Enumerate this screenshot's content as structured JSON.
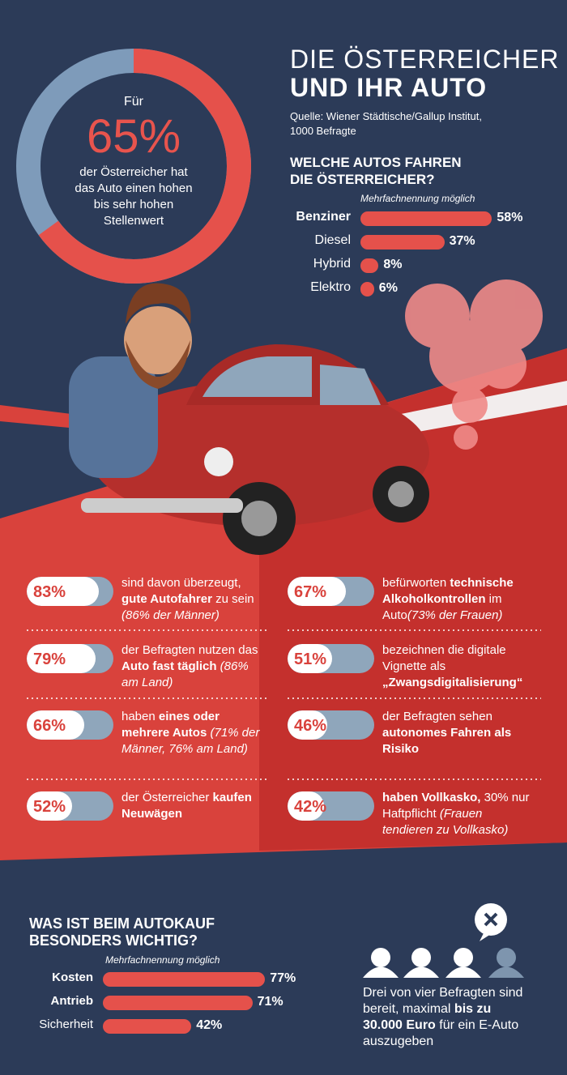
{
  "header": {
    "title_line1": "DIE ÖSTERREICHER",
    "title_line2": "UND IHR AUTO",
    "source": "Quelle: Wiener Städtische/Gallup Institut, 1000 Befragte"
  },
  "donut": {
    "prefix": "Für",
    "value": 65,
    "value_label": "65%",
    "text": "der Österreicher hat das Auto einen hohen bis sehr hohen Stellenwert"
  },
  "cars": {
    "title": "WELCHE AUTOS FAHREN DIE ÖSTERREICHER?",
    "note": "Mehrfachnennung möglich",
    "categories": [
      "Benziner",
      "Diesel",
      "Hybrid",
      "Elektro"
    ],
    "values": [
      58,
      37,
      8,
      6
    ],
    "value_labels": [
      "58%",
      "37%",
      "8%",
      "6%"
    ]
  },
  "stats": [
    {
      "value": 83,
      "value_label": "83%",
      "text": [
        {
          "t": "sind davon überzeugt, ",
          "style": "normal"
        },
        {
          "t": "gute Autofahrer",
          "style": "bold"
        },
        {
          "t": " zu sein ",
          "style": "normal"
        },
        {
          "t": "(86% der Männer)",
          "style": "italic"
        }
      ]
    },
    {
      "value": 79,
      "value_label": "79%",
      "text": [
        {
          "t": "der Befragten nutzen das ",
          "style": "normal"
        },
        {
          "t": "Auto fast täglich",
          "style": "bold"
        },
        {
          "t": " (86% am Land)",
          "style": "italic"
        }
      ]
    },
    {
      "value": 66,
      "value_label": "66%",
      "text": [
        {
          "t": "haben ",
          "style": "normal"
        },
        {
          "t": "eines oder mehrere Autos",
          "style": "bold"
        },
        {
          "t": " (71% der Männer, 76% am Land)",
          "style": "italic"
        }
      ]
    },
    {
      "value": 52,
      "value_label": "52%",
      "text": [
        {
          "t": "der Österreicher ",
          "style": "normal"
        },
        {
          "t": "kaufen Neuwägen",
          "style": "bold"
        }
      ]
    },
    {
      "value": 67,
      "value_label": "67%",
      "text": [
        {
          "t": "befürworten ",
          "style": "normal"
        },
        {
          "t": "technische Alkoholkontrollen",
          "style": "bold"
        },
        {
          "t": " im Auto",
          "style": "normal"
        },
        {
          "t": "(73% der Frauen)",
          "style": "italic"
        }
      ]
    },
    {
      "value": 51,
      "value_label": "51%",
      "text": [
        {
          "t": "bezeichnen die digitale Vignette als ",
          "style": "normal"
        },
        {
          "t": "„Zwangsdigitalisierung“",
          "style": "bold"
        }
      ]
    },
    {
      "value": 46,
      "value_label": "46%",
      "text": [
        {
          "t": "der Befragten sehen ",
          "style": "normal"
        },
        {
          "t": "autonomes Fahren als Risiko",
          "style": "bold"
        }
      ]
    },
    {
      "value": 42,
      "value_label": "42%",
      "text": [
        {
          "t": "haben Vollkasko,",
          "style": "bold"
        },
        {
          "t": " 30% nur Haftpflicht ",
          "style": "normal"
        },
        {
          "t": "(Frauen tendieren zu Vollkasko)",
          "style": "italic"
        }
      ]
    }
  ],
  "purchase": {
    "title": "WAS IST BEIM AUTOKAUF BESONDERS WICHTIG?",
    "note": "Mehrfachnennung möglich",
    "categories": [
      "Kosten",
      "Antrieb",
      "Sicherheit"
    ],
    "values": [
      77,
      71,
      42
    ],
    "value_labels": [
      "77%",
      "71%",
      "42%"
    ]
  },
  "footer": {
    "text": [
      {
        "t": "Drei von vier Befragten sind bereit, maximal ",
        "style": "normal"
      },
      {
        "t": "bis zu 30.000 Euro",
        "style": "bold"
      },
      {
        "t": " für ein E-Auto auszugeben",
        "style": "normal"
      }
    ]
  }
}
